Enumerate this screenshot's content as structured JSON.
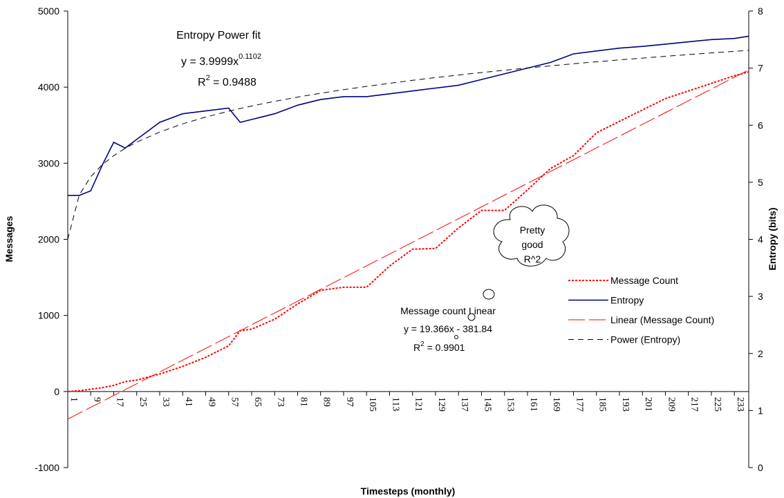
{
  "chart_data": {
    "type": "line",
    "x_axis_label": "Timesteps (monthly)",
    "y_axis_label": "Messages",
    "y2_axis_label": "Entropy (bits)",
    "x": [
      1,
      5,
      9,
      13,
      17,
      21,
      25,
      33,
      41,
      49,
      57,
      61,
      65,
      73,
      81,
      89,
      97,
      105,
      113,
      121,
      129,
      137,
      145,
      153,
      161,
      169,
      177,
      185,
      193,
      201,
      209,
      217,
      225,
      233,
      238
    ],
    "xlim": [
      1,
      238
    ],
    "xticks": [
      1,
      9,
      17,
      25,
      33,
      41,
      49,
      57,
      65,
      73,
      81,
      89,
      97,
      105,
      113,
      121,
      129,
      137,
      145,
      153,
      161,
      169,
      177,
      185,
      193,
      201,
      209,
      217,
      225,
      233
    ],
    "ylim": [
      -1000,
      5000
    ],
    "yticks": [
      -1000,
      0,
      1000,
      2000,
      3000,
      4000,
      5000
    ],
    "y2lim": [
      0,
      8
    ],
    "y2ticks": [
      0,
      1,
      2,
      3,
      4,
      5,
      6,
      7,
      8
    ],
    "series": [
      {
        "name": "Message Count",
        "color": "#ff0000",
        "style": "dotted",
        "values": [
          0,
          10,
          30,
          50,
          80,
          130,
          150,
          230,
          330,
          450,
          600,
          800,
          820,
          950,
          1150,
          1330,
          1370,
          1370,
          1650,
          1870,
          1880,
          2150,
          2380,
          2380,
          2650,
          2930,
          3100,
          3400,
          3550,
          3700,
          3850,
          3950,
          4050,
          4150,
          4200
        ]
      },
      {
        "name": "Entropy",
        "color": "#000080",
        "style": "solid",
        "axis": "y2",
        "values": [
          4.77,
          4.77,
          4.85,
          5.3,
          5.7,
          5.6,
          5.75,
          6.05,
          6.2,
          6.25,
          6.3,
          6.05,
          6.1,
          6.2,
          6.35,
          6.45,
          6.5,
          6.5,
          6.55,
          6.6,
          6.65,
          6.7,
          6.8,
          6.9,
          7.0,
          7.1,
          7.25,
          7.3,
          7.35,
          7.38,
          7.42,
          7.46,
          7.5,
          7.52,
          7.56
        ]
      },
      {
        "name": "Linear (Message Count)",
        "color": "#ff0000",
        "style": "longdash",
        "values": [
          -362.5,
          -285.0,
          -207.5,
          -130.1,
          -52.6,
          24.9,
          102.3,
          257.2,
          412.2,
          567.1,
          722.0,
          799.5,
          876.9,
          1031.9,
          1186.8,
          1341.7,
          1496.7,
          1651.6,
          1806.5,
          1961.4,
          2116.4,
          2271.3,
          2426.2,
          2581.2,
          2736.1,
          2891.0,
          3046.0,
          3200.9,
          3355.8,
          3510.7,
          3665.7,
          3820.6,
          3975.5,
          4130.4,
          4227.3
        ]
      },
      {
        "name": "Power (Entropy)",
        "color": "#000000",
        "style": "dashed",
        "axis": "y2",
        "values": [
          4.0,
          4.776,
          5.096,
          5.307,
          5.466,
          5.595,
          5.703,
          5.88,
          6.023,
          6.142,
          6.245,
          6.292,
          6.336,
          6.418,
          6.492,
          6.56,
          6.623,
          6.68,
          6.734,
          6.786,
          6.834,
          6.879,
          6.923,
          6.963,
          7.003,
          7.04,
          7.076,
          7.11,
          7.144,
          7.176,
          7.207,
          7.237,
          7.266,
          7.294,
          7.311
        ]
      }
    ],
    "annotations": {
      "power_fit": {
        "title": "Entropy Power fit",
        "equation": "y = 3.9999x",
        "exponent": "0.1102",
        "r": "R",
        "r_sup": "2",
        "r_value": " = 0.9488"
      },
      "linear_fit": {
        "title": "Message count Linear",
        "equation": "y = 19.366x - 381.84",
        "r": "R",
        "r_sup": "2",
        "r_value": " = 0.9901"
      },
      "callout": [
        "Pretty",
        "good",
        "R^2"
      ]
    }
  }
}
